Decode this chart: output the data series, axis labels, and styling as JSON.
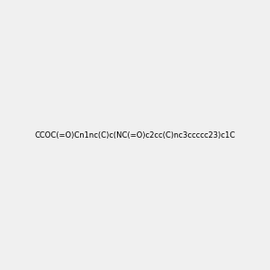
{
  "smiles": "CCOC(=O)Cn1nc(C)c(NC(=O)c2cc(C)nc3ccccc23)c1C",
  "title": "",
  "background_color": "#f0f0f0",
  "figsize": [
    3.0,
    3.0
  ],
  "dpi": 100
}
